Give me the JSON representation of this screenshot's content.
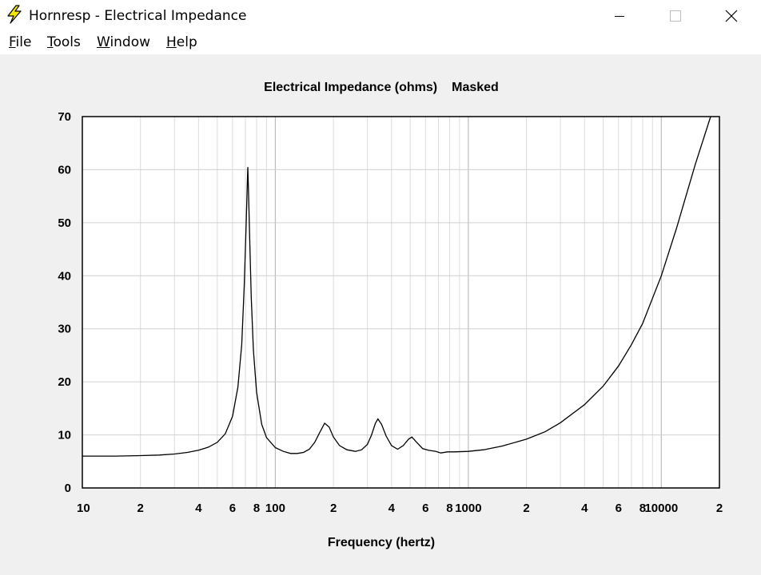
{
  "window": {
    "title": "Hornresp - Electrical Impedance",
    "icon": "lightning-bolt-icon"
  },
  "menu": [
    {
      "label": "File",
      "mnemonic": "F",
      "rest": "ile"
    },
    {
      "label": "Tools",
      "mnemonic": "T",
      "rest": "ools"
    },
    {
      "label": "Window",
      "mnemonic": "W",
      "rest": "indow"
    },
    {
      "label": "Help",
      "mnemonic": "H",
      "rest": "elp"
    }
  ],
  "chart_data": {
    "type": "line",
    "title": "Electrical Impedance (ohms)",
    "title_suffix": "Masked",
    "xlabel": "Frequency (hertz)",
    "ylabel": "",
    "xscale": "log",
    "xlim": [
      10,
      20000
    ],
    "ylim": [
      0,
      70
    ],
    "y_ticks": [
      "0",
      "10",
      "20",
      "30",
      "40",
      "50",
      "60",
      "70"
    ],
    "x_tick_labels": [
      {
        "f": 10,
        "label": "10"
      },
      {
        "f": 20,
        "label": "2"
      },
      {
        "f": 40,
        "label": "4"
      },
      {
        "f": 60,
        "label": "6"
      },
      {
        "f": 80,
        "label": "8"
      },
      {
        "f": 100,
        "label": "100"
      },
      {
        "f": 200,
        "label": "2"
      },
      {
        "f": 400,
        "label": "4"
      },
      {
        "f": 600,
        "label": "6"
      },
      {
        "f": 800,
        "label": "8"
      },
      {
        "f": 1000,
        "label": "1000"
      },
      {
        "f": 2000,
        "label": "2"
      },
      {
        "f": 4000,
        "label": "4"
      },
      {
        "f": 6000,
        "label": "6"
      },
      {
        "f": 8000,
        "label": "8"
      },
      {
        "f": 10000,
        "label": "10000"
      },
      {
        "f": 20000,
        "label": "2"
      }
    ],
    "grid": true,
    "colors": {
      "line": "#000000",
      "grid": "#c8c8c8",
      "plot_bg": "#ffffff"
    },
    "series": [
      {
        "points": [
          [
            10,
            6.0
          ],
          [
            15,
            6.0
          ],
          [
            20,
            6.1
          ],
          [
            25,
            6.2
          ],
          [
            30,
            6.4
          ],
          [
            35,
            6.7
          ],
          [
            40,
            7.1
          ],
          [
            45,
            7.7
          ],
          [
            50,
            8.6
          ],
          [
            55,
            10.2
          ],
          [
            60,
            13.5
          ],
          [
            64,
            19.0
          ],
          [
            67,
            27.0
          ],
          [
            69,
            38.0
          ],
          [
            70.5,
            49.0
          ],
          [
            71.5,
            57.0
          ],
          [
            72,
            60.5
          ],
          [
            72.5,
            57.0
          ],
          [
            73.5,
            48.0
          ],
          [
            75,
            36.0
          ],
          [
            77,
            26.0
          ],
          [
            80,
            18.0
          ],
          [
            85,
            12.0
          ],
          [
            90,
            9.5
          ],
          [
            100,
            7.6
          ],
          [
            110,
            6.9
          ],
          [
            120,
            6.5
          ],
          [
            130,
            6.5
          ],
          [
            140,
            6.7
          ],
          [
            150,
            7.3
          ],
          [
            160,
            8.6
          ],
          [
            170,
            10.5
          ],
          [
            180,
            12.2
          ],
          [
            190,
            11.5
          ],
          [
            200,
            9.6
          ],
          [
            215,
            8.0
          ],
          [
            235,
            7.2
          ],
          [
            260,
            6.9
          ],
          [
            280,
            7.2
          ],
          [
            300,
            8.2
          ],
          [
            315,
            10.0
          ],
          [
            330,
            12.2
          ],
          [
            340,
            13.0
          ],
          [
            355,
            12.0
          ],
          [
            375,
            9.8
          ],
          [
            400,
            8.0
          ],
          [
            430,
            7.3
          ],
          [
            460,
            8.0
          ],
          [
            490,
            9.2
          ],
          [
            510,
            9.6
          ],
          [
            540,
            8.6
          ],
          [
            580,
            7.4
          ],
          [
            620,
            7.1
          ],
          [
            680,
            6.9
          ],
          [
            720,
            6.6
          ],
          [
            780,
            6.8
          ],
          [
            850,
            6.8
          ],
          [
            1000,
            6.9
          ],
          [
            1200,
            7.2
          ],
          [
            1500,
            7.9
          ],
          [
            2000,
            9.2
          ],
          [
            2500,
            10.6
          ],
          [
            3000,
            12.3
          ],
          [
            4000,
            15.7
          ],
          [
            5000,
            19.2
          ],
          [
            6000,
            23.0
          ],
          [
            7000,
            27.0
          ],
          [
            8000,
            31.0
          ],
          [
            10000,
            40.0
          ],
          [
            12000,
            49.0
          ],
          [
            15000,
            61.0
          ],
          [
            18000,
            70.0
          ]
        ]
      }
    ]
  }
}
